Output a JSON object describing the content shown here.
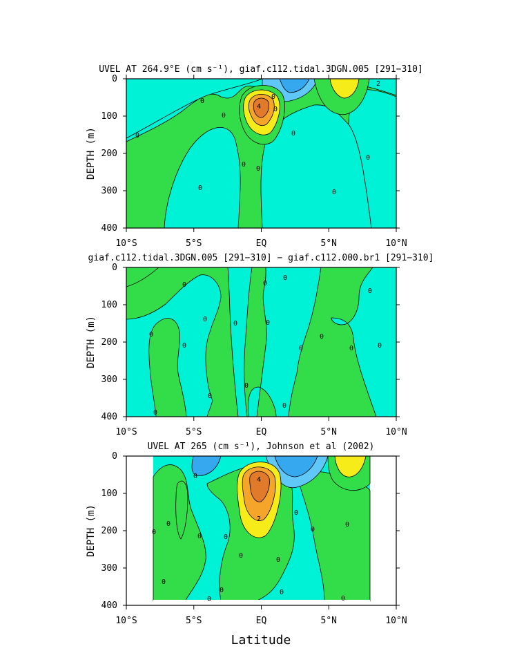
{
  "colors": {
    "cyan": "#00f2d6",
    "green": "#33dd4a",
    "yellow": "#f5ec1a",
    "orange": "#f6a52b",
    "red_orange": "#e27a2c",
    "blue": "#35a8f0",
    "light_blue": "#5fc8f8"
  },
  "chart_data": [
    {
      "type": "contour",
      "title": "UVEL AT 264.9°E (cm s⁻¹), giaf.c112.tidal.3DGN.005 [291−310]",
      "xlabel": "",
      "ylabel": "DEPTH (m)",
      "x_ticks": [
        "10°S",
        "5°S",
        "EQ",
        "5°N",
        "10°N"
      ],
      "y_ticks": [
        "0",
        "100",
        "200",
        "300",
        "400"
      ],
      "xlim": [
        -10,
        10
      ],
      "ylim": [
        400,
        0
      ],
      "contour_labels": [
        "0",
        "0",
        "0",
        "0",
        "0",
        "0",
        "0",
        "0",
        "0",
        "0",
        "0",
        "4",
        "2"
      ],
      "features": [
        {
          "kind": "max",
          "lat": 0,
          "depth": 75,
          "value": 4
        },
        {
          "kind": "max",
          "lat": 6,
          "depth": 20,
          "value": 2
        }
      ]
    },
    {
      "type": "contour",
      "title": "giaf.c112.tidal.3DGN.005 [291−310] − giaf.c112.000.br1 [291−310]",
      "xlabel": "",
      "ylabel": "DEPTH (m)",
      "x_ticks": [
        "10°S",
        "5°S",
        "EQ",
        "5°N",
        "10°N"
      ],
      "y_ticks": [
        "0",
        "100",
        "200",
        "300",
        "400"
      ],
      "xlim": [
        -10,
        10
      ],
      "ylim": [
        400,
        0
      ],
      "contour_labels": [
        "0",
        "0",
        "0",
        "0",
        "0",
        "0",
        "0",
        "0",
        "0",
        "0",
        "0",
        "0",
        "0",
        "0",
        "0",
        "0",
        "0"
      ]
    },
    {
      "type": "contour",
      "title": "UVEL AT 265 (cm s⁻¹), Johnson et al (2002)",
      "xlabel": "Latitude",
      "ylabel": "DEPTH (m)",
      "x_ticks": [
        "10°S",
        "5°S",
        "EQ",
        "5°N",
        "10°N"
      ],
      "y_ticks": [
        "0",
        "100",
        "200",
        "300",
        "400"
      ],
      "xlim": [
        -10,
        10
      ],
      "ylim": [
        400,
        0
      ],
      "data_range_lat": [
        -8,
        8
      ],
      "contour_labels": [
        "0",
        "0",
        "0",
        "0",
        "0",
        "0",
        "0",
        "0",
        "0",
        "0",
        "0",
        "0",
        "0",
        "0",
        "0",
        "2",
        "4"
      ],
      "features": [
        {
          "kind": "max",
          "lat": 0,
          "depth": 70,
          "value": 4
        },
        {
          "kind": "max",
          "lat": 6,
          "depth": 20,
          "value": 2
        }
      ]
    }
  ]
}
